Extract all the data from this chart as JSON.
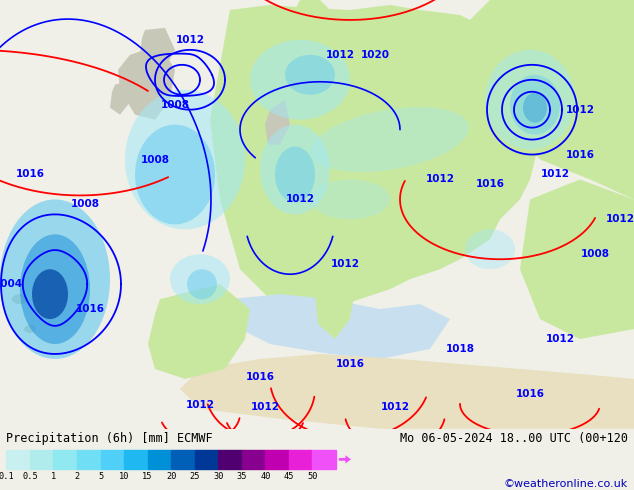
{
  "title_left": "Precipitation (6h) [mm] ECMWF",
  "title_right": "Mo 06-05-2024 18..00 UTC (00+120",
  "credit": "©weatheronline.co.uk",
  "colorbar_values": [
    0.1,
    0.5,
    1,
    2,
    5,
    10,
    15,
    20,
    25,
    30,
    35,
    40,
    45,
    50
  ],
  "colorbar_colors": [
    "#c8f0f0",
    "#b0ecec",
    "#90e8f0",
    "#70dff5",
    "#50d0f8",
    "#20b8f0",
    "#0090d8",
    "#0060b8",
    "#003898",
    "#500070",
    "#880090",
    "#c000b0",
    "#e820d8",
    "#f050f8"
  ],
  "ocean_color": "#d8eef8",
  "land_color": "#c8e8a0",
  "gray_land": "#c8c8b8",
  "precip_light": "#a0e8f8",
  "precip_mid": "#60c8f0",
  "precip_dark": "#2090d8",
  "precip_darkest": "#0040a0",
  "bg_color": "#f0f0e8",
  "fig_width": 6.34,
  "fig_height": 4.9,
  "dpi": 100
}
